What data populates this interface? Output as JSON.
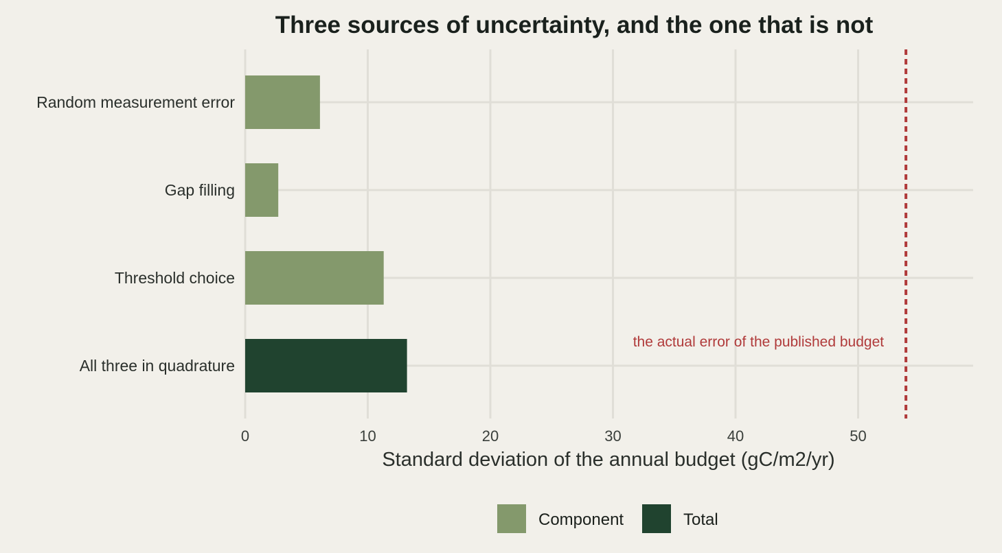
{
  "chart_data": {
    "type": "bar",
    "orientation": "horizontal",
    "title": "Three sources of uncertainty, and the one that is not",
    "xlabel": "Standard deviation of the annual budget (gC/m2/yr)",
    "ylabel": "",
    "xlim": [
      0,
      59
    ],
    "xticks": [
      0,
      10,
      20,
      30,
      40,
      50
    ],
    "grid": true,
    "categories": [
      "Random measurement error",
      "Gap filling",
      "Threshold choice",
      "All three in quadrature"
    ],
    "values": [
      6.1,
      2.7,
      11.3,
      13.2
    ],
    "groups": [
      "Component",
      "Component",
      "Component",
      "Total"
    ],
    "reference_line": {
      "value": 53.9,
      "style": "dotted",
      "color": "#b03a3a",
      "label": "the actual error of the published budget"
    },
    "legend": {
      "placement": "bottom",
      "entries": [
        {
          "label": "Component",
          "color": "#84996c"
        },
        {
          "label": "Total",
          "color": "#20432f"
        }
      ]
    },
    "colors": {
      "Component": "#84996c",
      "Total": "#20432f",
      "background": "#f2f0ea",
      "grid": "#e0ded7",
      "reference": "#b03a3a"
    }
  }
}
